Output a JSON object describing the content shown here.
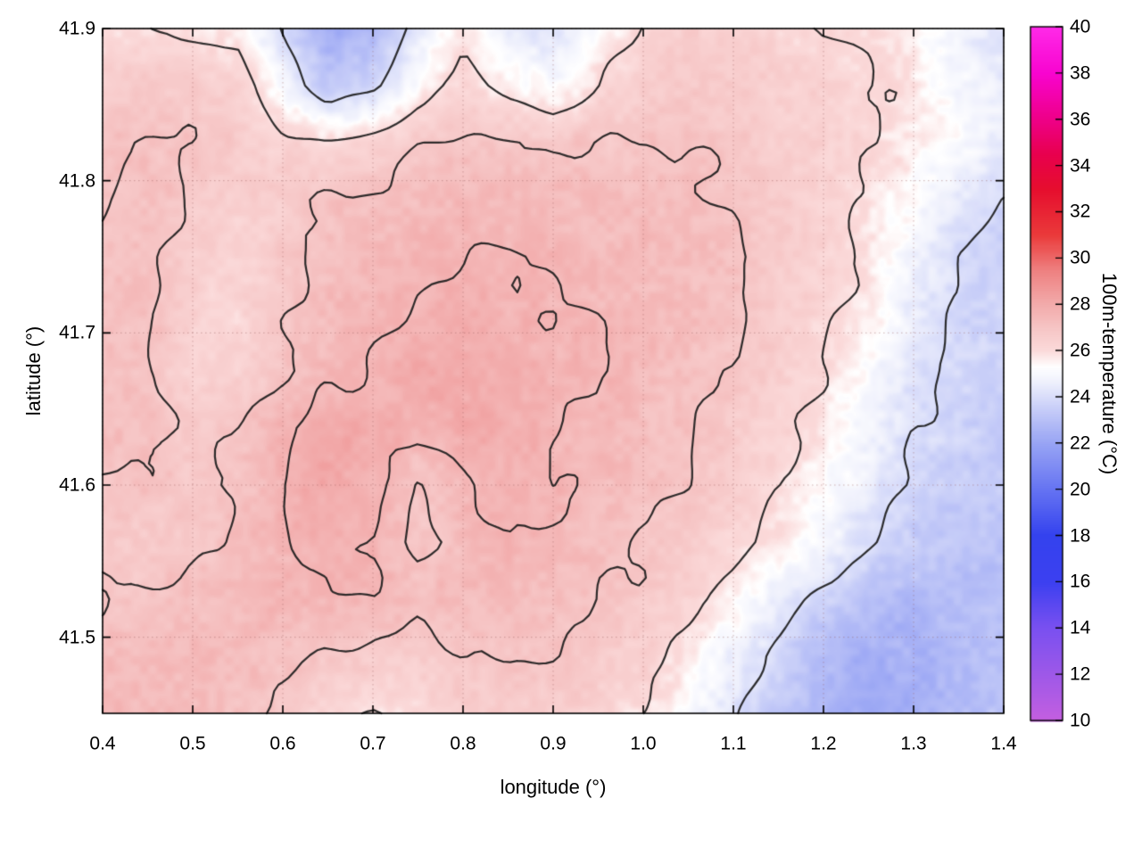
{
  "chart_data": {
    "type": "heatmap",
    "title": "",
    "xlabel": "longitude (°)",
    "ylabel": "latitude (°)",
    "x_range": [
      0.4,
      1.4
    ],
    "y_range": [
      41.45,
      41.9
    ],
    "x_ticks": {
      "values": [
        0.4,
        0.5,
        0.6,
        0.7,
        0.8,
        0.9,
        1.0,
        1.1,
        1.2,
        1.3,
        1.4
      ],
      "labels": [
        "0.4",
        "0.5",
        "0.6",
        "0.7",
        "0.8",
        "0.9",
        "1.0",
        "1.1",
        "1.2",
        "1.3",
        "1.4"
      ]
    },
    "y_ticks": {
      "values": [
        41.5,
        41.6,
        41.7,
        41.8,
        41.9
      ],
      "labels": [
        "41.5",
        "41.6",
        "41.7",
        "41.8",
        "41.9"
      ]
    },
    "grid": true,
    "contour_levels": [
      24,
      26,
      27,
      27.6
    ],
    "contour_color": "#1c1c1c",
    "colorbar": {
      "label": "100m-temperature (°C)",
      "range": [
        10,
        40
      ],
      "tick_values": [
        10,
        12,
        14,
        16,
        18,
        20,
        22,
        24,
        26,
        28,
        30,
        32,
        34,
        36,
        38,
        40
      ],
      "tick_labels": [
        "10",
        "12",
        "14",
        "16",
        "18",
        "20",
        "22",
        "24",
        "26",
        "28",
        "30",
        "32",
        "34",
        "36",
        "38",
        "40"
      ],
      "stops": [
        [
          10,
          "#c45fe0"
        ],
        [
          12,
          "#9e58e8"
        ],
        [
          14,
          "#7a50f0"
        ],
        [
          16,
          "#3c40f0"
        ],
        [
          18,
          "#3442ee"
        ],
        [
          20,
          "#6674f2"
        ],
        [
          22,
          "#98a4f4"
        ],
        [
          23.5,
          "#c8cef8"
        ],
        [
          24.6,
          "#edeffc"
        ],
        [
          25.3,
          "#ffffff"
        ],
        [
          26,
          "#fbdada"
        ],
        [
          27,
          "#f6c5c5"
        ],
        [
          28,
          "#f2abab"
        ],
        [
          29.5,
          "#ee8080"
        ],
        [
          31,
          "#ea3a3a"
        ],
        [
          33,
          "#e60e2e"
        ],
        [
          34.5,
          "#e8004e"
        ],
        [
          36,
          "#ee0088"
        ],
        [
          38,
          "#f804cf"
        ],
        [
          40,
          "#ff2ae8"
        ]
      ]
    },
    "field": {
      "lon_min": 0.4,
      "lon_max": 1.4,
      "cols": 21,
      "lat_min": 41.45,
      "lat_max": 41.9,
      "rows": 13,
      "units": "°C",
      "values_north_to_south": [
        [
          25.9,
          26.0,
          25.9,
          25.7,
          24.0,
          22.2,
          22.6,
          24.5,
          25.8,
          24.6,
          24.2,
          25.2,
          26.2,
          26.5,
          26.4,
          26.2,
          26.1,
          26.0,
          25.6,
          24.8,
          24.3
        ],
        [
          26.6,
          26.8,
          26.7,
          26.5,
          25.0,
          23.2,
          23.6,
          25.4,
          26.3,
          25.6,
          25.2,
          26.0,
          26.6,
          26.8,
          26.7,
          26.5,
          26.3,
          26.1,
          25.7,
          25.0,
          24.5
        ],
        [
          27.0,
          27.1,
          27.0,
          26.7,
          26.3,
          26.1,
          26.5,
          26.9,
          27.1,
          27.0,
          26.9,
          27.0,
          27.0,
          27.0,
          26.9,
          26.6,
          26.4,
          26.1,
          25.7,
          25.1,
          24.6
        ],
        [
          27.1,
          27.2,
          26.9,
          26.5,
          26.7,
          27.1,
          27.2,
          27.3,
          27.4,
          27.4,
          27.3,
          27.3,
          27.3,
          27.2,
          27.0,
          26.7,
          26.4,
          25.9,
          25.2,
          24.4,
          23.9
        ],
        [
          27.2,
          27.2,
          26.6,
          26.3,
          26.8,
          27.2,
          27.4,
          27.5,
          27.6,
          27.6,
          27.5,
          27.4,
          27.4,
          27.3,
          27.1,
          26.7,
          26.4,
          25.9,
          24.8,
          23.9,
          23.5
        ],
        [
          27.2,
          27.1,
          26.5,
          26.2,
          26.9,
          27.3,
          27.5,
          27.7,
          27.8,
          27.7,
          27.6,
          27.5,
          27.4,
          27.3,
          27.0,
          26.6,
          26.2,
          25.6,
          24.5,
          23.8,
          23.6
        ],
        [
          27.2,
          27.1,
          26.4,
          26.3,
          27.0,
          27.4,
          27.7,
          27.9,
          28.0,
          27.8,
          27.7,
          27.6,
          27.4,
          27.2,
          26.9,
          26.5,
          26.0,
          25.2,
          24.3,
          23.8,
          23.6
        ],
        [
          27.3,
          27.2,
          26.8,
          27.0,
          27.6,
          28.0,
          27.9,
          27.8,
          27.9,
          27.8,
          27.6,
          27.5,
          27.3,
          27.1,
          26.8,
          26.3,
          25.7,
          24.9,
          24.0,
          23.7,
          23.5
        ],
        [
          27.1,
          27.0,
          26.9,
          27.1,
          27.7,
          28.1,
          27.8,
          26.9,
          27.5,
          27.8,
          27.6,
          27.4,
          27.2,
          27.0,
          26.6,
          26.1,
          25.4,
          24.5,
          23.8,
          23.5,
          23.4
        ],
        [
          26.8,
          26.8,
          26.9,
          27.2,
          27.6,
          27.9,
          27.7,
          26.8,
          27.3,
          27.7,
          27.5,
          27.2,
          27.0,
          26.7,
          26.3,
          25.7,
          24.9,
          24.0,
          23.4,
          23.2,
          23.1
        ],
        [
          27.0,
          27.1,
          27.2,
          27.4,
          27.5,
          27.6,
          27.5,
          27.3,
          27.4,
          27.4,
          27.3,
          27.1,
          26.8,
          26.3,
          25.6,
          24.7,
          23.7,
          23.0,
          22.8,
          22.9,
          23.0
        ],
        [
          27.4,
          27.4,
          27.4,
          27.3,
          27.2,
          27.0,
          26.7,
          26.6,
          27.0,
          27.1,
          27.0,
          26.8,
          26.4,
          25.7,
          24.7,
          23.7,
          22.8,
          22.4,
          22.5,
          22.7,
          23.0
        ],
        [
          27.5,
          27.5,
          27.4,
          27.2,
          26.8,
          26.2,
          25.9,
          26.1,
          26.6,
          26.8,
          26.6,
          26.4,
          25.9,
          25.2,
          24.2,
          23.2,
          22.5,
          22.3,
          22.5,
          22.8,
          23.2
        ]
      ]
    }
  }
}
